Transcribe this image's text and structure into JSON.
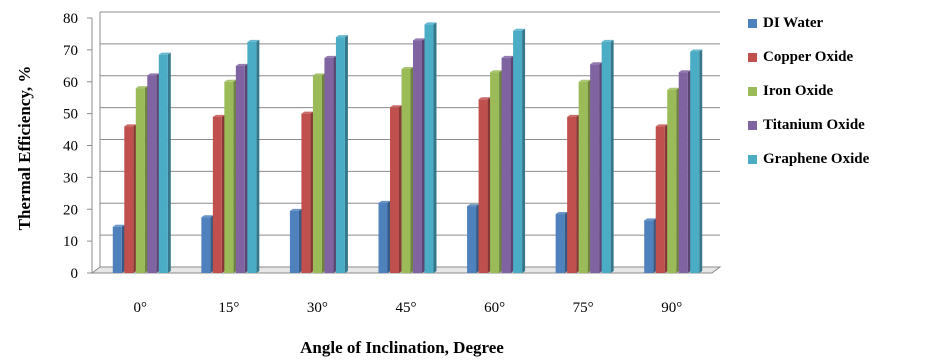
{
  "chart_data": {
    "type": "bar",
    "xlabel": "Angle of Inclination,  Degree",
    "ylabel": "Thermal Efficiency, %",
    "ylim": [
      0,
      80
    ],
    "yticks": [
      "0",
      "10",
      "20",
      "30",
      "40",
      "50",
      "60",
      "70",
      "80"
    ],
    "grid": true,
    "legend_position": "right",
    "categories": [
      "0°",
      "15°",
      "30°",
      "45°",
      "60°",
      "75°",
      "90°"
    ],
    "series": [
      {
        "name": "DI Water",
        "color": "#4f81bd",
        "values": [
          14.5,
          17.5,
          19.5,
          22,
          21,
          18.5,
          16.5
        ]
      },
      {
        "name": "Copper Oxide",
        "color": "#c0504d",
        "values": [
          46,
          49,
          50,
          52,
          54.5,
          49,
          46
        ]
      },
      {
        "name": "Iron Oxide",
        "color": "#9bbb59",
        "values": [
          58,
          60,
          62,
          64,
          63,
          60,
          57.5
        ]
      },
      {
        "name": "Titanium Oxide",
        "color": "#8064a2",
        "values": [
          62,
          65,
          67.5,
          73,
          67.5,
          65.5,
          63
        ]
      },
      {
        "name": "Graphene Oxide",
        "color": "#4bacc6",
        "values": [
          68.5,
          72.5,
          74,
          78,
          76,
          72.5,
          69.5
        ]
      }
    ]
  }
}
